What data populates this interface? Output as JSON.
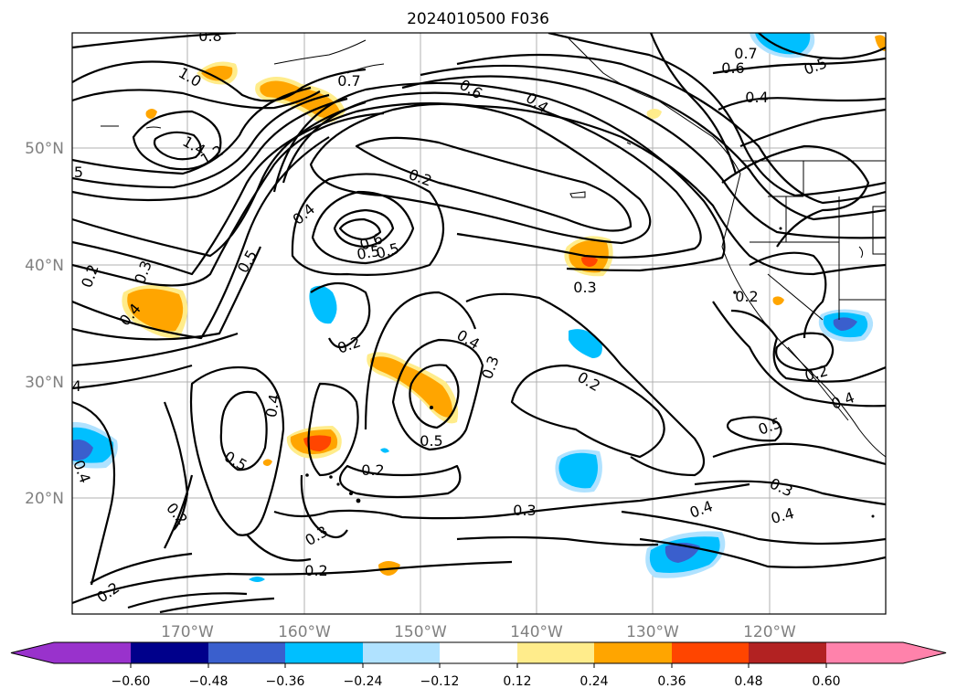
{
  "title": "2024010500 F036",
  "map": {
    "lat_labels": [
      "50°N",
      "40°N",
      "30°N",
      "20°N"
    ],
    "lon_labels": [
      "170°W",
      "160°W",
      "150°W",
      "140°W",
      "130°W",
      "120°W"
    ],
    "contour_labels": [
      "0.8",
      "1.0",
      "0.7",
      "0.6",
      "0.4",
      "0.7",
      "0.6",
      "0.5",
      "0.4",
      "1.4",
      "1.2",
      "0.2",
      "0.4",
      "0.6",
      "0.5",
      "0.5",
      "0.3",
      "0.2",
      "0.3",
      "0.4",
      "0.2",
      "0.4",
      "0.3",
      "0.2",
      "0.5",
      "0.5",
      "0.4",
      "0.2",
      "0.5",
      "0.2",
      "0.3",
      "0.4",
      "0.2",
      "0.4",
      "0.3",
      "0.2",
      "0.2",
      "0.4",
      "0.5",
      "0.3",
      "0.4",
      "4",
      "5",
      "0.2"
    ]
  },
  "colorbar": {
    "ticks": [
      "−0.60",
      "−0.48",
      "−0.36",
      "−0.24",
      "−0.12",
      "0.12",
      "0.24",
      "0.36",
      "0.48",
      "0.60"
    ],
    "colors": [
      "#9932cc",
      "#00008b",
      "#3a5fcd",
      "#00bfff",
      "#b0e2ff",
      "#ffffff",
      "#ffec8b",
      "#ffa500",
      "#ff4500",
      "#b22222",
      "#ff82ab"
    ]
  }
}
